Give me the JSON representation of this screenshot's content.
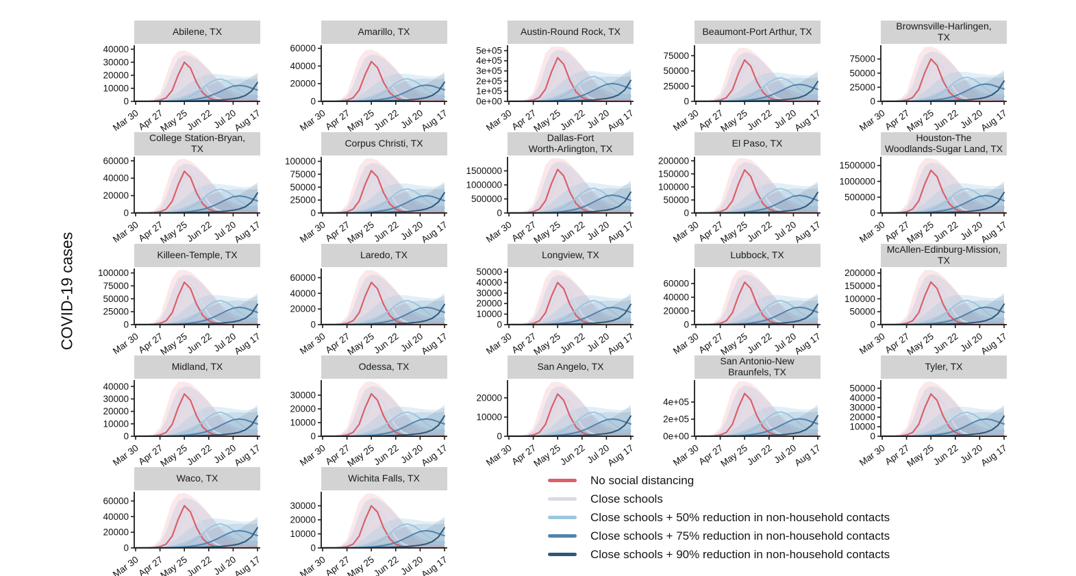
{
  "figure": {
    "background_color": "#ffffff",
    "strip_background": "#d3d3d3",
    "axis_color": "#1a1a1a"
  },
  "chart_data": {
    "type": "line",
    "title": "",
    "ylabel": "COVID-19 cases",
    "xlabel": "",
    "layout": "facet grid, 5 columns x 5 rows, 22 panels, legend bottom-right",
    "grid": "off",
    "x_tick_labels": [
      "Mar 30",
      "Apr 27",
      "May 25",
      "Jun 22",
      "Jul 20",
      "Aug 17"
    ],
    "x_tick_positions": [
      0,
      4,
      8,
      12,
      16,
      20
    ],
    "x_resolution": "21 weekly points from Mar 30 to Aug 17",
    "note": "Series values are normalized to each panel's 'No social distancing' peak (red_peak); multiply shape by red_peak for absolute cases. Band_upper arrays are the shaded uncertainty-ribbon upper bounds, same normalization.",
    "scenarios": [
      {
        "name": "No social distancing",
        "color": "#D95F69",
        "line_width": 2.2,
        "band_fill": "rgba(217,95,105,0.14)",
        "shape": [
          0.003,
          0.004,
          0.006,
          0.01,
          0.03,
          0.09,
          0.28,
          0.68,
          1.0,
          0.85,
          0.48,
          0.22,
          0.09,
          0.035,
          0.015,
          0.008,
          0.005,
          0.004,
          0.004,
          0.005,
          0.007
        ],
        "band_upper": [
          0.006,
          0.01,
          0.02,
          0.06,
          0.2,
          0.65,
          1.1,
          1.28,
          1.3,
          1.24,
          1.13,
          0.98,
          0.82,
          0.62,
          0.42,
          0.25,
          0.15,
          0.1,
          0.08,
          0.07,
          0.07
        ]
      },
      {
        "name": "Close schools",
        "color": "#D8DAE4",
        "line_width": 2.0,
        "band_fill": "rgba(190,196,220,0.35)",
        "shape": [
          0.002,
          0.003,
          0.005,
          0.008,
          0.02,
          0.055,
          0.16,
          0.42,
          0.82,
          0.95,
          0.78,
          0.48,
          0.24,
          0.11,
          0.05,
          0.025,
          0.014,
          0.01,
          0.008,
          0.008,
          0.01
        ],
        "band_upper": [
          0.005,
          0.008,
          0.014,
          0.04,
          0.12,
          0.38,
          0.8,
          1.1,
          1.18,
          1.16,
          1.08,
          0.95,
          0.8,
          0.64,
          0.47,
          0.33,
          0.24,
          0.19,
          0.16,
          0.16,
          0.18
        ]
      },
      {
        "name": "Close schools + 50% reduction in non-household contacts",
        "color": "#9CC5DF",
        "line_width": 2.0,
        "band_fill": "rgba(156,197,223,0.28)",
        "shape": [
          0.002,
          0.002,
          0.003,
          0.004,
          0.006,
          0.01,
          0.018,
          0.035,
          0.07,
          0.13,
          0.22,
          0.34,
          0.46,
          0.545,
          0.57,
          0.52,
          0.42,
          0.3,
          0.2,
          0.14,
          0.12
        ],
        "band_upper": [
          0.003,
          0.004,
          0.006,
          0.012,
          0.03,
          0.07,
          0.14,
          0.24,
          0.36,
          0.48,
          0.58,
          0.65,
          0.69,
          0.7,
          0.69,
          0.67,
          0.65,
          0.63,
          0.62,
          0.63,
          0.68
        ]
      },
      {
        "name": "Close schools + 75% reduction in non-household contacts",
        "color": "#4E84B0",
        "line_width": 2.0,
        "band_fill": "rgba(78,132,176,0.16)",
        "shape": [
          0.002,
          0.002,
          0.002,
          0.003,
          0.004,
          0.006,
          0.009,
          0.014,
          0.022,
          0.035,
          0.055,
          0.085,
          0.13,
          0.19,
          0.26,
          0.33,
          0.39,
          0.41,
          0.39,
          0.34,
          0.29
        ],
        "band_upper": [
          0.002,
          0.003,
          0.004,
          0.007,
          0.014,
          0.03,
          0.055,
          0.09,
          0.14,
          0.2,
          0.27,
          0.34,
          0.41,
          0.47,
          0.52,
          0.55,
          0.57,
          0.57,
          0.56,
          0.56,
          0.58
        ]
      },
      {
        "name": "Close schools + 90% reduction in non-household contacts",
        "color": "#2D5878",
        "line_width": 2.0,
        "band_fill": "rgba(45,88,120,0.13)",
        "shape": [
          0.002,
          0.002,
          0.002,
          0.002,
          0.003,
          0.003,
          0.004,
          0.006,
          0.008,
          0.01,
          0.013,
          0.017,
          0.022,
          0.028,
          0.036,
          0.048,
          0.065,
          0.095,
          0.15,
          0.26,
          0.48
        ],
        "band_upper": [
          0.002,
          0.002,
          0.003,
          0.004,
          0.007,
          0.012,
          0.02,
          0.032,
          0.048,
          0.068,
          0.092,
          0.12,
          0.155,
          0.195,
          0.24,
          0.295,
          0.36,
          0.44,
          0.53,
          0.63,
          0.74
        ]
      }
    ],
    "panels": [
      {
        "title": "Abilene, TX",
        "red_peak": 30000,
        "ymax": 42000,
        "ytick_values": [
          0,
          10000,
          20000,
          30000,
          40000
        ],
        "ytick_labels": [
          "0",
          "10000",
          "20000",
          "30000",
          "40000"
        ]
      },
      {
        "title": "Amarillo, TX",
        "red_peak": 45000,
        "ymax": 62000,
        "ytick_values": [
          0,
          20000,
          40000,
          60000
        ],
        "ytick_labels": [
          "0",
          "20000",
          "40000",
          "60000"
        ]
      },
      {
        "title": "Austin-Round Rock, TX",
        "red_peak": 430000,
        "ymax": 540000,
        "ytick_values": [
          0,
          100000,
          200000,
          300000,
          400000,
          500000
        ],
        "ytick_labels": [
          "0e+00",
          "1e+05",
          "2e+05",
          "3e+05",
          "4e+05",
          "5e+05"
        ]
      },
      {
        "title": "Beaumont-Port Arthur, TX",
        "red_peak": 68000,
        "ymax": 90000,
        "ytick_values": [
          0,
          25000,
          50000,
          75000
        ],
        "ytick_labels": [
          "0",
          "25000",
          "50000",
          "75000"
        ]
      },
      {
        "title": "Brownsville-Harlingen,\nTX",
        "red_peak": 75000,
        "ymax": 97000,
        "ytick_values": [
          0,
          25000,
          50000,
          75000
        ],
        "ytick_labels": [
          "0",
          "25000",
          "50000",
          "75000"
        ]
      },
      {
        "title": "College Station-Bryan,\nTX",
        "red_peak": 48000,
        "ymax": 63000,
        "ytick_values": [
          0,
          20000,
          40000,
          60000
        ],
        "ytick_labels": [
          "0",
          "20000",
          "40000",
          "60000"
        ]
      },
      {
        "title": "Corpus Christi, TX",
        "red_peak": 82000,
        "ymax": 106000,
        "ytick_values": [
          0,
          25000,
          50000,
          75000,
          100000
        ],
        "ytick_labels": [
          "0",
          "25000",
          "50000",
          "75000",
          "100000"
        ]
      },
      {
        "title": "Dallas-Fort\nWorth-Arlington, TX",
        "red_peak": 1550000,
        "ymax": 1950000,
        "ytick_values": [
          0,
          500000,
          1000000,
          1500000
        ],
        "ytick_labels": [
          "0",
          "500000",
          "1000000",
          "1500000"
        ]
      },
      {
        "title": "El Paso, TX",
        "red_peak": 165000,
        "ymax": 210000,
        "ytick_values": [
          0,
          50000,
          100000,
          150000,
          200000
        ],
        "ytick_labels": [
          "0",
          "50000",
          "100000",
          "150000",
          "200000"
        ]
      },
      {
        "title": "Houston-The\nWoodlands-Sugar Land, TX",
        "red_peak": 1350000,
        "ymax": 1730000,
        "ytick_values": [
          0,
          500000,
          1000000,
          1500000
        ],
        "ytick_labels": [
          "0",
          "500000",
          "1000000",
          "1500000"
        ]
      },
      {
        "title": "Killeen-Temple, TX",
        "red_peak": 82000,
        "ymax": 106000,
        "ytick_values": [
          0,
          25000,
          50000,
          75000,
          100000
        ],
        "ytick_labels": [
          "0",
          "25000",
          "50000",
          "75000",
          "100000"
        ]
      },
      {
        "title": "Laredo, TX",
        "red_peak": 54000,
        "ymax": 70000,
        "ytick_values": [
          0,
          20000,
          40000,
          60000
        ],
        "ytick_labels": [
          "0",
          "20000",
          "40000",
          "60000"
        ]
      },
      {
        "title": "Longview, TX",
        "red_peak": 40000,
        "ymax": 52000,
        "ytick_values": [
          0,
          10000,
          20000,
          30000,
          40000,
          50000
        ],
        "ytick_labels": [
          "0",
          "10000",
          "20000",
          "30000",
          "40000",
          "50000"
        ]
      },
      {
        "title": "Lubbock, TX",
        "red_peak": 62000,
        "ymax": 80000,
        "ytick_values": [
          0,
          20000,
          40000,
          60000
        ],
        "ytick_labels": [
          "0",
          "20000",
          "40000",
          "60000"
        ]
      },
      {
        "title": "McAllen-Edinburg-Mission,\nTX",
        "red_peak": 165000,
        "ymax": 212000,
        "ytick_values": [
          0,
          50000,
          100000,
          150000,
          200000
        ],
        "ytick_labels": [
          "0",
          "50000",
          "100000",
          "150000",
          "200000"
        ]
      },
      {
        "title": "Midland, TX",
        "red_peak": 34000,
        "ymax": 44000,
        "ytick_values": [
          0,
          10000,
          20000,
          30000,
          40000
        ],
        "ytick_labels": [
          "0",
          "10000",
          "20000",
          "30000",
          "40000"
        ]
      },
      {
        "title": "Odessa, TX",
        "red_peak": 31000,
        "ymax": 40000,
        "ytick_values": [
          0,
          10000,
          20000,
          30000
        ],
        "ytick_labels": [
          "0",
          "10000",
          "20000",
          "30000"
        ]
      },
      {
        "title": "San Angelo, TX",
        "red_peak": 22000,
        "ymax": 28500,
        "ytick_values": [
          0,
          10000,
          20000
        ],
        "ytick_labels": [
          "0",
          "10000",
          "20000"
        ]
      },
      {
        "title": "San Antonio-New\nBraunfels, TX",
        "red_peak": 500000,
        "ymax": 640000,
        "ytick_values": [
          0,
          200000,
          400000
        ],
        "ytick_labels": [
          "0e+00",
          "2e+05",
          "4e+05"
        ]
      },
      {
        "title": "Tyler, TX",
        "red_peak": 44000,
        "ymax": 57000,
        "ytick_values": [
          0,
          10000,
          20000,
          30000,
          40000,
          50000
        ],
        "ytick_labels": [
          "0",
          "10000",
          "20000",
          "30000",
          "40000",
          "50000"
        ]
      },
      {
        "title": "Waco, TX",
        "red_peak": 54000,
        "ymax": 70000,
        "ytick_values": [
          0,
          20000,
          40000,
          60000
        ],
        "ytick_labels": [
          "0",
          "20000",
          "40000",
          "60000"
        ]
      },
      {
        "title": "Wichita Falls, TX",
        "red_peak": 30000,
        "ymax": 39000,
        "ytick_values": [
          0,
          10000,
          20000,
          30000
        ],
        "ytick_labels": [
          "0",
          "10000",
          "20000",
          "30000"
        ]
      }
    ],
    "legend_position": "bottom-right"
  }
}
